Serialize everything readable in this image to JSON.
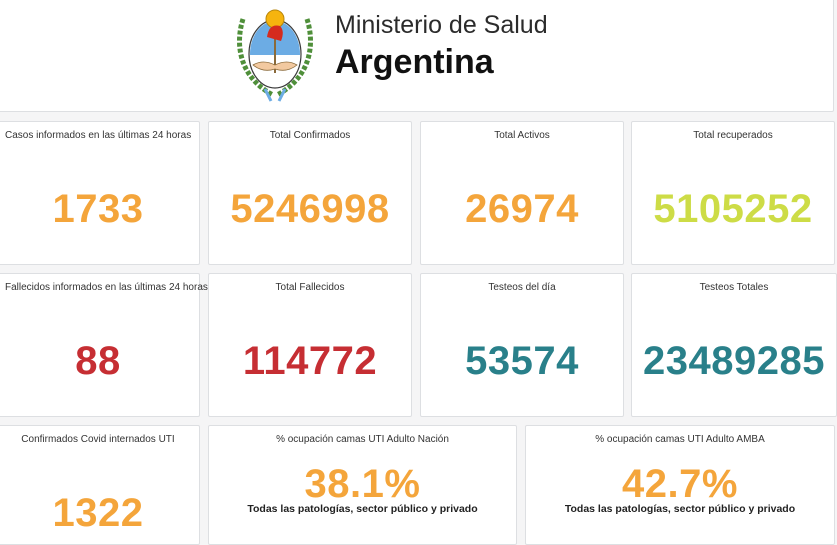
{
  "header": {
    "line1": "Ministerio de Salud",
    "line2": "Argentina",
    "logo_icon": "argentina-coat-of-arms"
  },
  "colors": {
    "orange": "#f4a53b",
    "lime": "#cddc46",
    "red": "#c62e33",
    "teal": "#29808a"
  },
  "cards": {
    "casos_24h": {
      "title": "Casos informados en las últimas 24 horas",
      "value": "1733"
    },
    "total_confirmados": {
      "title": "Total Confirmados",
      "value": "5246998"
    },
    "total_activos": {
      "title": "Total Activos",
      "value": "26974"
    },
    "total_recuperados": {
      "title": "Total recuperados",
      "value": "5105252"
    },
    "fallecidos_24h": {
      "title": "Fallecidos informados en las últimas 24 horas",
      "value": "88"
    },
    "total_fallecidos": {
      "title": "Total Fallecidos",
      "value": "114772"
    },
    "testeos_dia": {
      "title": "Testeos del día",
      "value": "53574"
    },
    "testeos_totales": {
      "title": "Testeos Totales",
      "value": "23489285"
    },
    "internados_uti": {
      "title": "Confirmados Covid internados UTI",
      "value": "1322"
    },
    "uti_nacion": {
      "title": "% ocupación camas UTI Adulto Nación",
      "value": "38.1%",
      "subtitle": "Todas las patologías, sector público y privado"
    },
    "uti_amba": {
      "title": "% ocupación camas UTI Adulto AMBA",
      "value": "42.7%",
      "subtitle": "Todas las patologías, sector público y privado"
    }
  }
}
